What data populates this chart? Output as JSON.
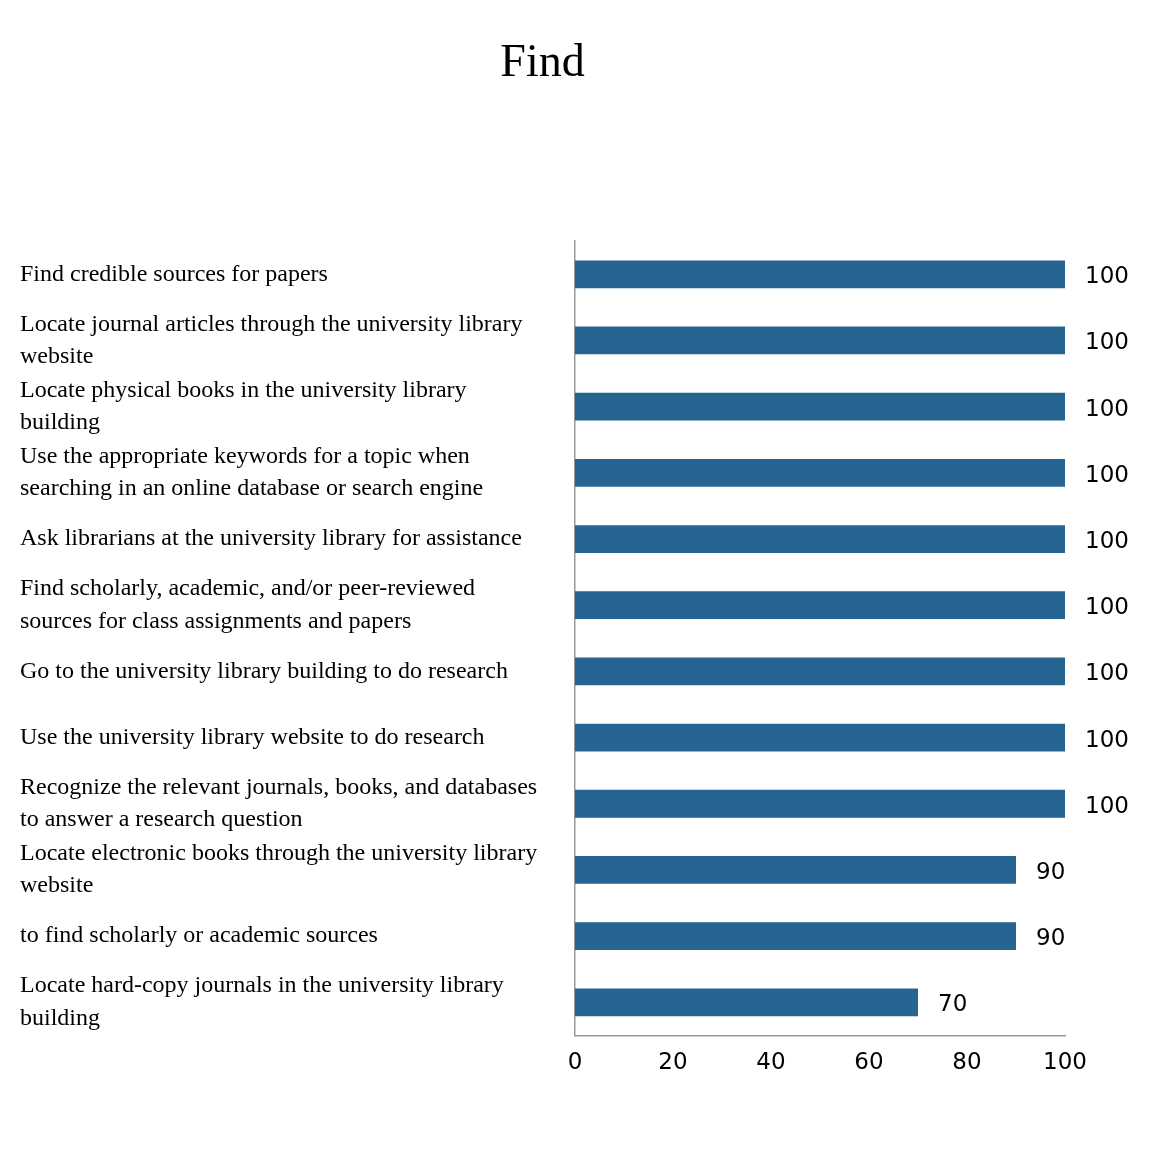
{
  "chart_data": {
    "type": "bar",
    "orientation": "horizontal",
    "title": "Find",
    "categories": [
      "Find credible sources for papers",
      "Locate journal articles through the university library website",
      "Locate physical books in the university library building",
      "Use the appropriate keywords for a topic when searching in an online database or search engine",
      "Ask librarians at the university library for assistance",
      "Find scholarly, academic, and/or peer-reviewed sources for class assignments and papers",
      "Go to the university library building to do research",
      "Use the university library website to do research",
      "Recognize the relevant journals, books, and databases to answer a research question",
      "Locate electronic books through the university library website",
      "to find scholarly or academic sources",
      "Locate hard-copy journals in the university library building"
    ],
    "values": [
      100,
      100,
      100,
      100,
      100,
      100,
      100,
      100,
      100,
      90,
      90,
      70
    ],
    "color": "#266591",
    "xlim": [
      0,
      100
    ],
    "xticks": [
      0,
      20,
      40,
      60,
      80,
      100
    ],
    "data_labels": true,
    "grid": false,
    "legend": false
  }
}
